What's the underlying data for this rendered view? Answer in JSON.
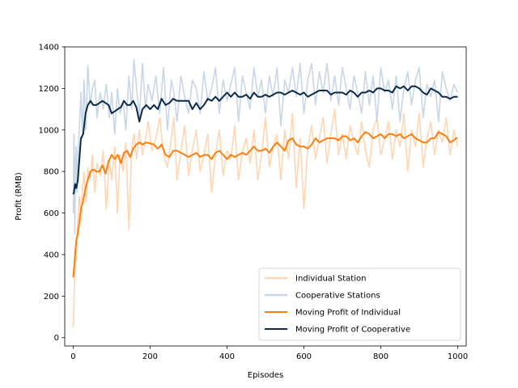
{
  "chart_data": {
    "type": "line",
    "xlabel": "Episodes",
    "ylabel": "Profit (RMB)",
    "xlim": [
      -22,
      1022
    ],
    "ylim": [
      -40,
      1400
    ],
    "xticks": [
      0,
      200,
      400,
      600,
      800,
      1000
    ],
    "yticks": [
      0,
      200,
      400,
      600,
      800,
      1000,
      1200,
      1400
    ],
    "grid": false,
    "legend_position": "lower-right",
    "series": [
      {
        "name": "Individual Station",
        "color": "#ffd6b3",
        "style": "raw",
        "x": [
          0,
          2,
          4,
          6,
          8,
          10,
          13,
          16,
          20,
          24,
          28,
          33,
          38,
          44,
          50,
          56,
          62,
          70,
          78,
          86,
          94,
          100,
          108,
          115,
          122,
          130,
          137,
          145,
          152,
          158,
          165,
          172,
          180,
          188,
          195,
          205,
          215,
          225,
          235,
          245,
          255,
          262,
          270,
          280,
          290,
          300,
          310,
          320,
          330,
          340,
          350,
          360,
          370,
          380,
          390,
          400,
          410,
          420,
          430,
          440,
          450,
          460,
          470,
          480,
          490,
          500,
          510,
          520,
          530,
          540,
          550,
          560,
          570,
          580,
          590,
          600,
          610,
          620,
          630,
          640,
          650,
          660,
          670,
          680,
          690,
          700,
          710,
          720,
          730,
          740,
          750,
          760,
          770,
          780,
          790,
          800,
          810,
          820,
          830,
          840,
          850,
          860,
          870,
          880,
          890,
          900,
          910,
          920,
          930,
          940,
          950,
          960,
          970,
          980,
          990,
          1000
        ],
        "values": [
          50,
          180,
          300,
          420,
          370,
          520,
          600,
          680,
          560,
          720,
          800,
          650,
          820,
          760,
          880,
          700,
          840,
          780,
          900,
          620,
          860,
          760,
          920,
          600,
          880,
          800,
          940,
          520,
          900,
          980,
          860,
          1000,
          880,
          960,
          1040,
          900,
          960,
          1060,
          880,
          820,
          960,
          1060,
          760,
          900,
          1020,
          780,
          900,
          1000,
          800,
          880,
          980,
          700,
          880,
          1000,
          780,
          900,
          860,
          1020,
          760,
          900,
          960,
          840,
          1000,
          760,
          880,
          1060,
          820,
          920,
          980,
          760,
          1000,
          860,
          1080,
          720,
          960,
          620,
          920,
          1020,
          860,
          960,
          1060,
          840,
          980,
          1100,
          880,
          980,
          860,
          1020,
          940,
          880,
          1040,
          900,
          820,
          1000,
          1060,
          880,
          960,
          1040,
          860,
          1000,
          920,
          1080,
          800,
          1000,
          920,
          1080,
          820,
          960,
          1040,
          880,
          1000,
          940,
          1060,
          880,
          1000,
          920
        ]
      },
      {
        "name": "Cooperative Stations",
        "color": "#c9d6e6",
        "style": "raw",
        "x": [
          0,
          2,
          4,
          6,
          8,
          10,
          13,
          16,
          20,
          24,
          28,
          33,
          38,
          44,
          50,
          56,
          62,
          70,
          78,
          86,
          94,
          100,
          108,
          115,
          122,
          130,
          137,
          145,
          152,
          158,
          165,
          172,
          180,
          188,
          195,
          205,
          215,
          225,
          235,
          245,
          255,
          262,
          270,
          280,
          290,
          300,
          310,
          320,
          330,
          340,
          350,
          360,
          370,
          380,
          390,
          400,
          410,
          420,
          430,
          440,
          450,
          460,
          470,
          480,
          490,
          500,
          510,
          520,
          530,
          540,
          550,
          560,
          570,
          580,
          590,
          600,
          610,
          620,
          630,
          640,
          650,
          660,
          670,
          680,
          690,
          700,
          710,
          720,
          730,
          740,
          750,
          760,
          770,
          780,
          790,
          800,
          810,
          820,
          830,
          840,
          850,
          860,
          870,
          880,
          890,
          900,
          910,
          920,
          930,
          940,
          950,
          960,
          970,
          980,
          990,
          1000
        ],
        "values": [
          600,
          980,
          500,
          860,
          920,
          700,
          880,
          1020,
          1180,
          960,
          1240,
          1000,
          1310,
          1120,
          1200,
          1240,
          1060,
          1180,
          1100,
          1220,
          1060,
          1180,
          980,
          1200,
          1080,
          1140,
          1000,
          1260,
          1100,
          1340,
          1200,
          1060,
          1320,
          1100,
          1220,
          1140,
          1260,
          1080,
          1300,
          1000,
          1240,
          1180,
          1040,
          1260,
          1160,
          1080,
          1240,
          1200,
          1080,
          1280,
          1140,
          1200,
          1300,
          1080,
          1240,
          1140,
          1220,
          1300,
          1040,
          1260,
          1180,
          1100,
          1300,
          1160,
          1240,
          1080,
          1260,
          1160,
          1300,
          1020,
          1240,
          1180,
          1300,
          1160,
          1320,
          1080,
          1240,
          1320,
          1120,
          1280,
          1180,
          1320,
          1140,
          1260,
          1120,
          1300,
          1200,
          1100,
          1260,
          1180,
          1080,
          1280,
          1120,
          1260,
          1040,
          1300,
          1180,
          1240,
          1100,
          1260,
          1040,
          1200,
          1280,
          1120,
          1240,
          1300,
          1060,
          1220,
          1160,
          1240,
          1040,
          1280,
          1200,
          1140,
          1220,
          1180
        ]
      },
      {
        "name": "Moving Profit of Individual",
        "color": "#ff7f0e",
        "style": "moving",
        "x": [
          0,
          2,
          5,
          8,
          12,
          16,
          20,
          26,
          32,
          38,
          45,
          52,
          60,
          68,
          76,
          84,
          92,
          100,
          108,
          116,
          124,
          132,
          140,
          148,
          156,
          164,
          172,
          180,
          190,
          200,
          210,
          220,
          230,
          240,
          250,
          260,
          270,
          280,
          290,
          300,
          310,
          320,
          330,
          340,
          350,
          360,
          370,
          380,
          390,
          400,
          410,
          420,
          430,
          440,
          450,
          460,
          470,
          480,
          490,
          500,
          510,
          520,
          530,
          540,
          550,
          560,
          570,
          580,
          590,
          600,
          610,
          620,
          630,
          640,
          650,
          660,
          670,
          680,
          690,
          700,
          710,
          720,
          730,
          740,
          750,
          760,
          770,
          780,
          790,
          800,
          810,
          820,
          830,
          840,
          850,
          860,
          870,
          880,
          890,
          900,
          910,
          920,
          930,
          940,
          950,
          960,
          970,
          980,
          990,
          995,
          1000
        ],
        "values": [
          290,
          330,
          400,
          470,
          500,
          560,
          620,
          660,
          720,
          760,
          800,
          810,
          800,
          800,
          830,
          790,
          850,
          880,
          860,
          880,
          840,
          890,
          900,
          870,
          910,
          930,
          940,
          930,
          940,
          935,
          930,
          910,
          930,
          880,
          870,
          900,
          900,
          890,
          880,
          870,
          880,
          890,
          870,
          880,
          880,
          860,
          890,
          900,
          880,
          860,
          880,
          870,
          880,
          890,
          880,
          900,
          920,
          900,
          900,
          910,
          890,
          920,
          940,
          920,
          900,
          950,
          960,
          930,
          920,
          920,
          910,
          930,
          960,
          940,
          950,
          960,
          960,
          960,
          950,
          970,
          970,
          950,
          960,
          940,
          970,
          990,
          980,
          960,
          970,
          980,
          960,
          980,
          980,
          970,
          980,
          960,
          970,
          980,
          960,
          950,
          940,
          940,
          960,
          960,
          990,
          980,
          970,
          940,
          950,
          960,
          960
        ]
      },
      {
        "name": "Moving Profit of Cooperative",
        "color": "#0b2b48",
        "style": "moving",
        "x": [
          0,
          2,
          5,
          8,
          12,
          16,
          20,
          26,
          32,
          38,
          45,
          52,
          60,
          68,
          76,
          84,
          92,
          100,
          108,
          116,
          124,
          132,
          140,
          148,
          156,
          164,
          172,
          180,
          190,
          200,
          210,
          220,
          230,
          240,
          250,
          260,
          270,
          280,
          290,
          300,
          310,
          320,
          330,
          340,
          350,
          360,
          370,
          380,
          390,
          400,
          410,
          420,
          430,
          440,
          450,
          460,
          470,
          480,
          490,
          500,
          510,
          520,
          530,
          540,
          550,
          560,
          570,
          580,
          590,
          600,
          610,
          620,
          630,
          640,
          650,
          660,
          670,
          680,
          690,
          700,
          710,
          720,
          730,
          740,
          750,
          760,
          770,
          780,
          790,
          800,
          810,
          820,
          830,
          840,
          850,
          860,
          870,
          880,
          890,
          900,
          910,
          920,
          930,
          940,
          950,
          960,
          970,
          980,
          990,
          995,
          1000
        ],
        "values": [
          690,
          700,
          740,
          720,
          760,
          860,
          960,
          980,
          1080,
          1120,
          1140,
          1120,
          1120,
          1130,
          1140,
          1130,
          1120,
          1080,
          1090,
          1100,
          1110,
          1140,
          1120,
          1120,
          1140,
          1110,
          1040,
          1100,
          1120,
          1100,
          1120,
          1100,
          1150,
          1120,
          1130,
          1150,
          1140,
          1140,
          1140,
          1140,
          1100,
          1130,
          1100,
          1120,
          1150,
          1140,
          1160,
          1140,
          1160,
          1180,
          1160,
          1180,
          1160,
          1160,
          1170,
          1150,
          1180,
          1160,
          1160,
          1170,
          1160,
          1170,
          1180,
          1180,
          1170,
          1180,
          1190,
          1180,
          1170,
          1180,
          1160,
          1170,
          1180,
          1190,
          1190,
          1190,
          1170,
          1180,
          1180,
          1180,
          1170,
          1190,
          1180,
          1160,
          1180,
          1180,
          1190,
          1180,
          1200,
          1200,
          1190,
          1190,
          1180,
          1210,
          1200,
          1210,
          1190,
          1210,
          1210,
          1200,
          1180,
          1170,
          1200,
          1190,
          1180,
          1160,
          1160,
          1150,
          1160,
          1160,
          1160
        ]
      }
    ]
  }
}
